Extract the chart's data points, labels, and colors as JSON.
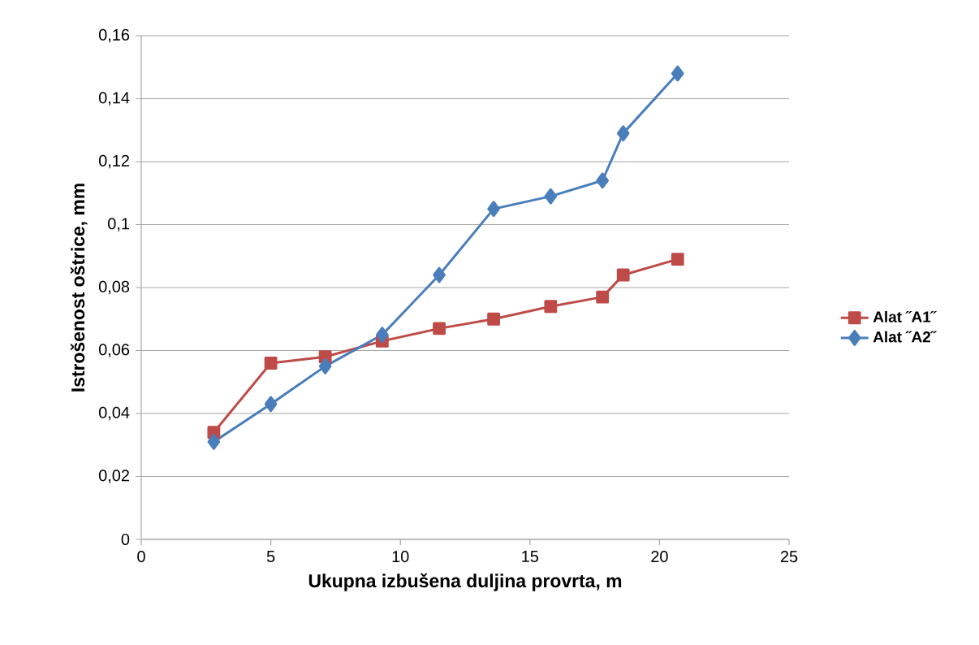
{
  "chart_data": {
    "type": "line",
    "xlabel": "Ukupna izbušena duljina provrta, m",
    "ylabel": "Istrošenost oštrice, mm",
    "xlim": [
      0,
      25
    ],
    "xticks": [
      0,
      5,
      10,
      15,
      20,
      25
    ],
    "ylim": [
      0,
      0.16
    ],
    "yticks": [
      0,
      {
        "value": 0.02,
        "label": "0,02"
      },
      {
        "value": 0.04,
        "label": "0,04"
      },
      {
        "value": 0.06,
        "label": "0,06"
      },
      {
        "value": 0.08,
        "label": "0,08"
      },
      {
        "value": 0.1,
        "label": "0,1"
      },
      {
        "value": 0.12,
        "label": "0,12"
      },
      {
        "value": 0.14,
        "label": "0,14"
      },
      {
        "value": 0.16,
        "label": "0,16"
      }
    ],
    "grid": "y",
    "legend": "right",
    "line_style": "solid",
    "series": [
      {
        "name": "Alat ˝A1˝",
        "color": "#be4b48",
        "marker": "square",
        "x": [
          2.8,
          5.0,
          7.1,
          9.3,
          11.5,
          13.6,
          15.8,
          17.8,
          18.6,
          20.7
        ],
        "values": [
          0.034,
          0.056,
          0.058,
          0.063,
          0.067,
          0.07,
          0.074,
          0.077,
          0.084,
          0.089
        ]
      },
      {
        "name": "Alat ˝A2˝",
        "color": "#4a7ebb",
        "marker": "diamond",
        "x": [
          2.8,
          5.0,
          7.1,
          9.3,
          11.5,
          13.6,
          15.8,
          17.8,
          18.6,
          20.7
        ],
        "values": [
          0.031,
          0.043,
          0.055,
          0.065,
          0.084,
          0.105,
          0.109,
          0.114,
          0.129,
          0.148
        ]
      }
    ]
  }
}
